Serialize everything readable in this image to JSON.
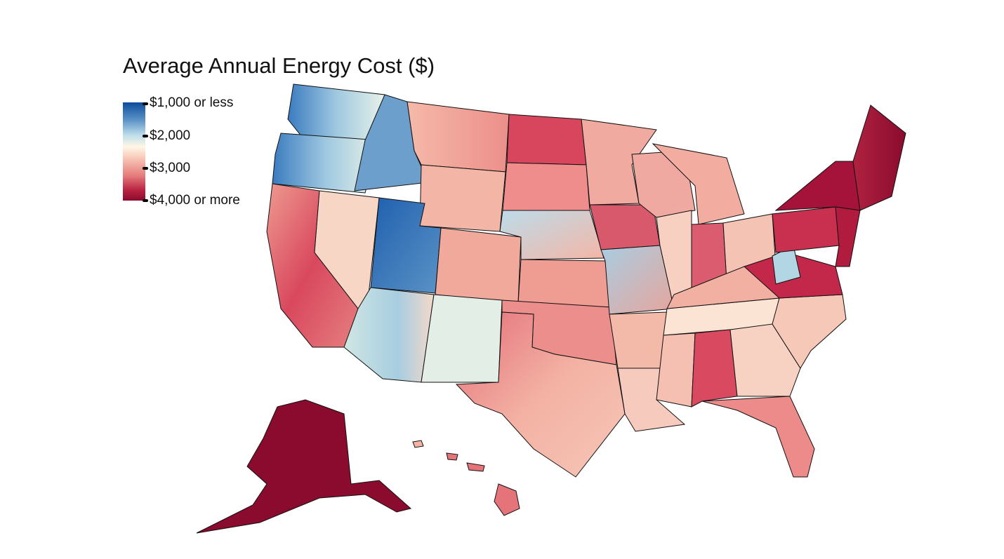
{
  "title": "Average Annual Energy Cost ($)",
  "legend": {
    "labels": [
      "$1,000 or less",
      "$2,000",
      "$3,000",
      "$4,000 or more"
    ],
    "colors": [
      "#0d4c9c",
      "#bcdcea",
      "#f6c4b6",
      "#8a0b2e"
    ]
  },
  "map": {
    "region": "United States counties",
    "palette": {
      "low_blue": "#2d6fb5",
      "light_blue": "#9fc8e0",
      "pale": "#fff4dc",
      "light_red": "#f5b3a3",
      "mid_red": "#e4747a",
      "dark_red": "#8a0b2e"
    }
  }
}
